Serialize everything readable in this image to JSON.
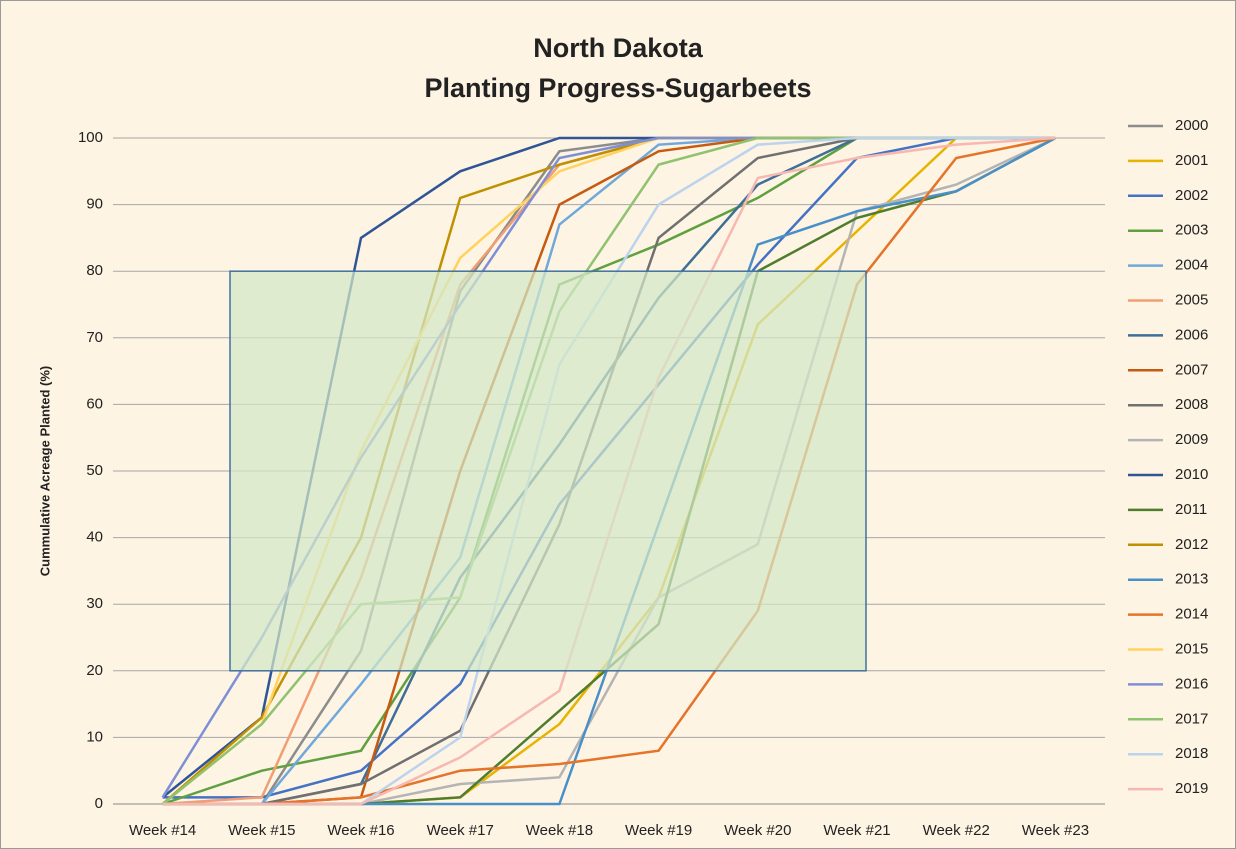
{
  "chart_data": {
    "type": "line",
    "title": "North Dakota",
    "subtitle": "Planting Progress-Sugarbeets",
    "y_label": "Cummulative Acreage Planted (%)",
    "categories": [
      "Week #14",
      "Week #15",
      "Week #16",
      "Week #17",
      "Week #18",
      "Week #19",
      "Week #20",
      "Week #21",
      "Week #22",
      "Week #23"
    ],
    "ylim": [
      0,
      100
    ],
    "yticks": [
      0,
      10,
      20,
      30,
      40,
      50,
      60,
      70,
      80,
      90,
      100
    ],
    "grid": true,
    "legend": "right",
    "highlight_range": [
      20,
      80
    ],
    "series": [
      {
        "name": "2000",
        "color": "#8c8c8c",
        "values": [
          0,
          0,
          23,
          77,
          98,
          100,
          100,
          100,
          100,
          100
        ]
      },
      {
        "name": "2001",
        "color": "#e6b400",
        "values": [
          0,
          0,
          0,
          1,
          12,
          31,
          72,
          86,
          100,
          100
        ]
      },
      {
        "name": "2002",
        "color": "#4472c4",
        "values": [
          1,
          1,
          5,
          18,
          45,
          63,
          81,
          97,
          100,
          100
        ]
      },
      {
        "name": "2003",
        "color": "#5fa040",
        "values": [
          0,
          5,
          8,
          31,
          78,
          84,
          91,
          100,
          100,
          100
        ]
      },
      {
        "name": "2004",
        "color": "#6fa8dc",
        "values": [
          0,
          0,
          18,
          37,
          87,
          99,
          100,
          100,
          100,
          100
        ]
      },
      {
        "name": "2005",
        "color": "#f19e73",
        "values": [
          0,
          1,
          34,
          78,
          96,
          100,
          100,
          100,
          100,
          100
        ]
      },
      {
        "name": "2006",
        "color": "#3e6f98",
        "values": [
          0,
          0,
          3,
          34,
          54,
          76,
          93,
          100,
          100,
          100
        ]
      },
      {
        "name": "2007",
        "color": "#c55a11",
        "values": [
          0,
          0,
          1,
          50,
          90,
          98,
          100,
          100,
          100,
          100
        ]
      },
      {
        "name": "2008",
        "color": "#707070",
        "values": [
          0,
          0,
          3,
          11,
          42,
          85,
          97,
          100,
          100,
          100
        ]
      },
      {
        "name": "2009",
        "color": "#b4b4b4",
        "values": [
          0,
          0,
          0,
          3,
          4,
          31,
          39,
          89,
          93,
          100
        ]
      },
      {
        "name": "2010",
        "color": "#2f5597",
        "values": [
          1,
          13,
          85,
          95,
          100,
          100,
          100,
          100,
          100,
          100
        ]
      },
      {
        "name": "2011",
        "color": "#4e7d2e",
        "values": [
          0,
          0,
          0,
          1,
          14,
          27,
          80,
          88,
          92,
          100
        ]
      },
      {
        "name": "2012",
        "color": "#bf9000",
        "values": [
          0,
          13,
          40,
          91,
          96,
          100,
          100,
          100,
          100,
          100
        ]
      },
      {
        "name": "2013",
        "color": "#4a90c8",
        "values": [
          0,
          0,
          0,
          0,
          0,
          42,
          84,
          89,
          92,
          100
        ]
      },
      {
        "name": "2014",
        "color": "#e5732a",
        "values": [
          0,
          0,
          1,
          5,
          6,
          8,
          29,
          78,
          97,
          100
        ]
      },
      {
        "name": "2015",
        "color": "#ffd25e",
        "values": [
          0,
          12,
          53,
          82,
          95,
          100,
          100,
          100,
          100,
          100
        ]
      },
      {
        "name": "2016",
        "color": "#7f8fd6",
        "values": [
          1,
          25,
          52,
          75,
          97,
          100,
          100,
          100,
          100,
          100
        ]
      },
      {
        "name": "2017",
        "color": "#8fc36f",
        "values": [
          0,
          12,
          30,
          31,
          74,
          96,
          100,
          100,
          100,
          100
        ]
      },
      {
        "name": "2018",
        "color": "#bcd3ee",
        "values": [
          0,
          0,
          0,
          10,
          66,
          90,
          99,
          100,
          100,
          100
        ]
      },
      {
        "name": "2019",
        "color": "#f6b8b0",
        "values": [
          0,
          0,
          0,
          7,
          17,
          64,
          94,
          97,
          99,
          100
        ]
      }
    ]
  }
}
